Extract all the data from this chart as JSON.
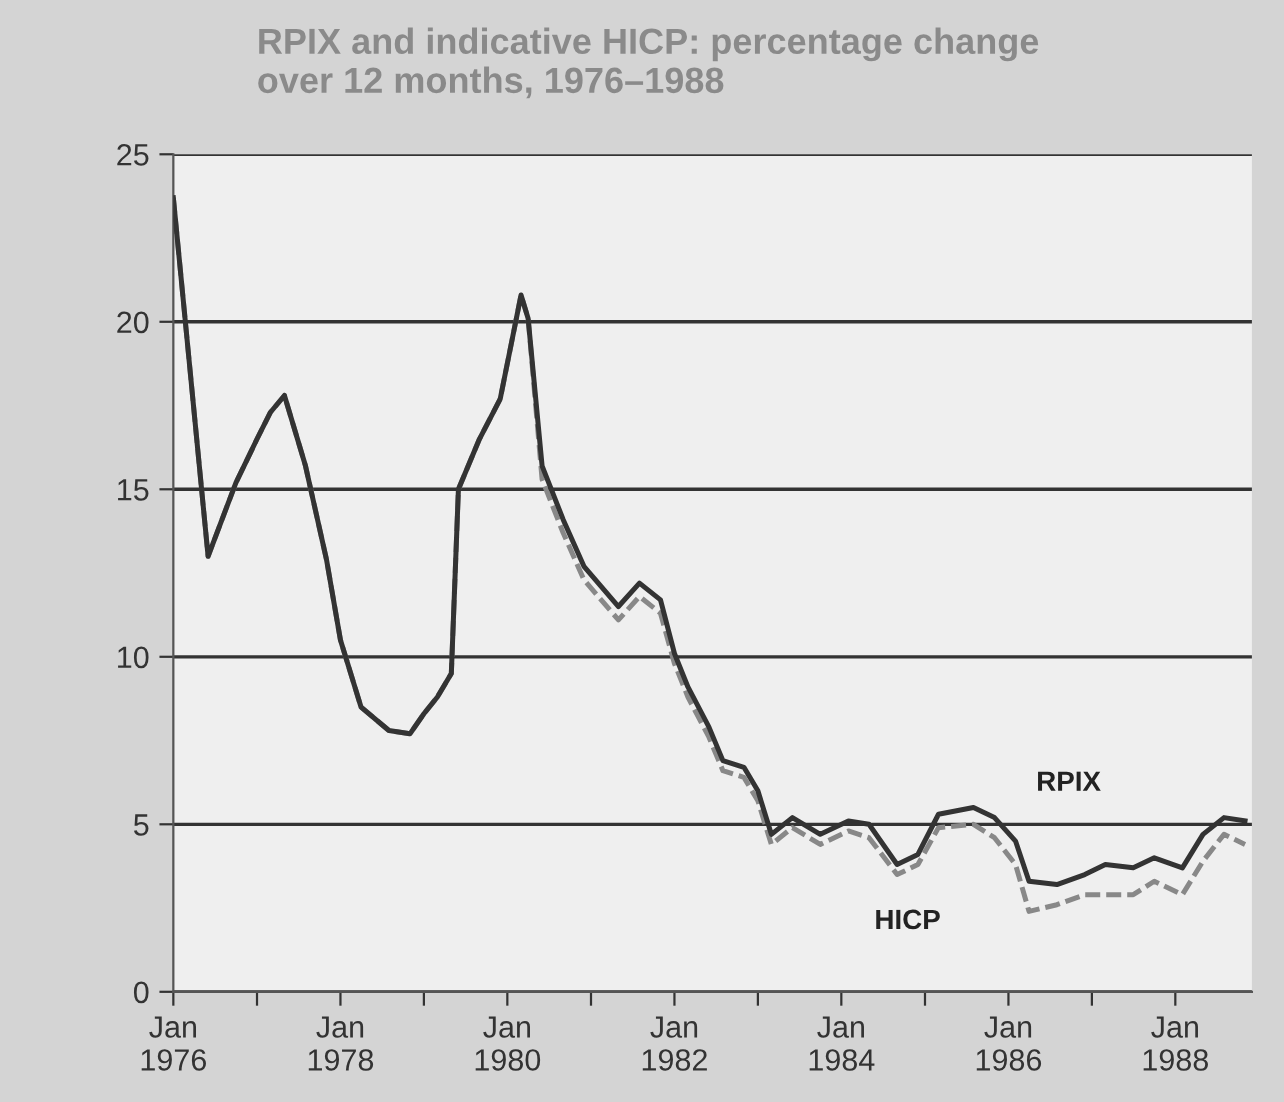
{
  "chart_data": {
    "type": "line",
    "title": "RPIX and indicative HICP: percentage change\nover 12 months, 1976–1988",
    "x": [
      "1976-01",
      "1976-06",
      "1976-10",
      "1977-01",
      "1977-03",
      "1977-05",
      "1977-08",
      "1977-11",
      "1978-01",
      "1978-04",
      "1978-08",
      "1978-11",
      "1979-01",
      "1979-03",
      "1979-05",
      "1979-06",
      "1979-09",
      "1979-12",
      "1980-03",
      "1980-04",
      "1980-06",
      "1980-09",
      "1980-12",
      "1981-05",
      "1981-08",
      "1981-11",
      "1982-01",
      "1982-03",
      "1982-06",
      "1982-08",
      "1982-11",
      "1983-01",
      "1983-03",
      "1983-06",
      "1983-10",
      "1984-02",
      "1984-05",
      "1984-09",
      "1984-12",
      "1985-03",
      "1985-08",
      "1985-11",
      "1986-02",
      "1986-04",
      "1986-08",
      "1986-12",
      "1987-03",
      "1987-07",
      "1987-10",
      "1988-02",
      "1988-05",
      "1988-08",
      "1988-11"
    ],
    "series": [
      {
        "name": "RPIX",
        "color": "#333333",
        "line_style": "solid",
        "values": [
          23.7,
          13.0,
          15.2,
          16.5,
          17.3,
          17.8,
          15.7,
          12.9,
          10.5,
          8.5,
          7.8,
          7.7,
          8.3,
          8.8,
          9.5,
          15.0,
          16.5,
          17.7,
          20.8,
          20.1,
          15.7,
          14.1,
          12.7,
          11.5,
          12.2,
          11.7,
          10.1,
          9.1,
          7.9,
          6.9,
          6.7,
          6.0,
          4.7,
          5.2,
          4.7,
          5.1,
          5.0,
          3.8,
          4.1,
          5.3,
          5.5,
          5.2,
          4.5,
          3.3,
          3.2,
          3.5,
          3.8,
          3.7,
          4.0,
          3.7,
          4.7,
          5.2,
          5.1
        ]
      },
      {
        "name": "HICP",
        "color": "#888888",
        "line_style": "dashed",
        "values": [
          23.7,
          13.0,
          15.2,
          16.5,
          17.3,
          17.8,
          15.7,
          12.9,
          10.5,
          8.5,
          7.8,
          7.7,
          8.3,
          8.8,
          9.5,
          15.0,
          16.5,
          17.7,
          20.8,
          20.1,
          15.3,
          13.7,
          12.3,
          11.1,
          11.8,
          11.3,
          9.8,
          8.8,
          7.6,
          6.6,
          6.4,
          5.7,
          4.4,
          4.9,
          4.4,
          4.8,
          4.6,
          3.5,
          3.8,
          4.9,
          5.0,
          4.6,
          3.8,
          2.4,
          2.6,
          2.9,
          2.9,
          2.9,
          3.3,
          2.9,
          3.9,
          4.7,
          4.4
        ]
      }
    ],
    "xlim": [
      "1976-01",
      "1988-12"
    ],
    "xticks": [
      {
        "value": "1976-01",
        "label": "Jan\n1976"
      },
      {
        "value": "1977-01",
        "label": null
      },
      {
        "value": "1978-01",
        "label": "Jan\n1978"
      },
      {
        "value": "1979-01",
        "label": null
      },
      {
        "value": "1980-01",
        "label": "Jan\n1980"
      },
      {
        "value": "1981-01",
        "label": null
      },
      {
        "value": "1982-01",
        "label": "Jan\n1982"
      },
      {
        "value": "1983-01",
        "label": null
      },
      {
        "value": "1984-01",
        "label": "Jan\n1984"
      },
      {
        "value": "1985-01",
        "label": null
      },
      {
        "value": "1986-01",
        "label": "Jan\n1986"
      },
      {
        "value": "1987-01",
        "label": null
      },
      {
        "value": "1988-01",
        "label": "Jan\n1988"
      }
    ],
    "ylim": [
      0,
      25
    ],
    "yticks": [
      0,
      5,
      10,
      15,
      20,
      25
    ],
    "grid": "y",
    "legend": false,
    "marker": "none"
  }
}
